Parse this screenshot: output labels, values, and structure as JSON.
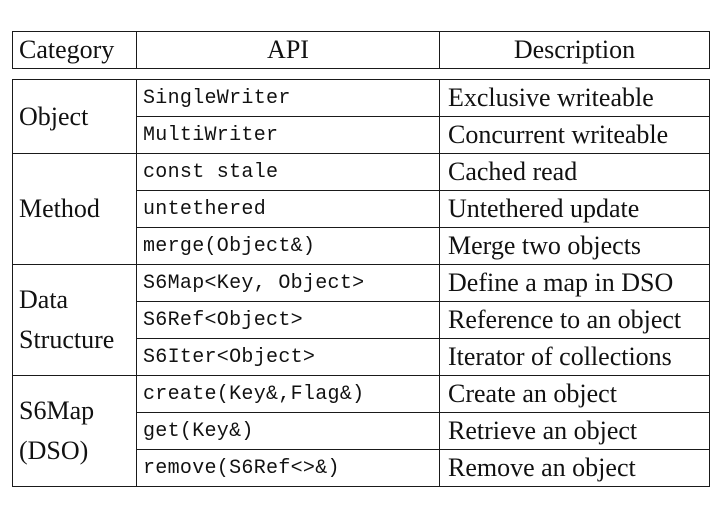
{
  "header": {
    "category": "Category",
    "api": "API",
    "description": "Description"
  },
  "groups": [
    {
      "category_lines": [
        "Object"
      ],
      "rows": [
        {
          "api": "SingleWriter",
          "description": "Exclusive writeable"
        },
        {
          "api": "MultiWriter",
          "description": "Concurrent writeable"
        }
      ]
    },
    {
      "category_lines": [
        "Method"
      ],
      "rows": [
        {
          "api": "const stale",
          "description": "Cached read"
        },
        {
          "api": "untethered",
          "description": "Untethered update"
        },
        {
          "api": "merge(Object&)",
          "description": "Merge two objects"
        }
      ]
    },
    {
      "category_lines": [
        "Data",
        "Structure"
      ],
      "rows": [
        {
          "api": "S6Map<Key, Object>",
          "description": "Define a map in DSO"
        },
        {
          "api": "S6Ref<Object>",
          "description": "Reference to an object"
        },
        {
          "api": "S6Iter<Object>",
          "description": "Iterator of collections"
        }
      ]
    },
    {
      "category_lines": [
        "S6Map",
        "(DSO)"
      ],
      "rows": [
        {
          "api": "create(Key&,Flag&)",
          "description": "Create an object"
        },
        {
          "api": "get(Key&)",
          "description": "Retrieve an object"
        },
        {
          "api": "remove(S6Ref<>&)",
          "description": "Remove an object"
        }
      ]
    }
  ]
}
